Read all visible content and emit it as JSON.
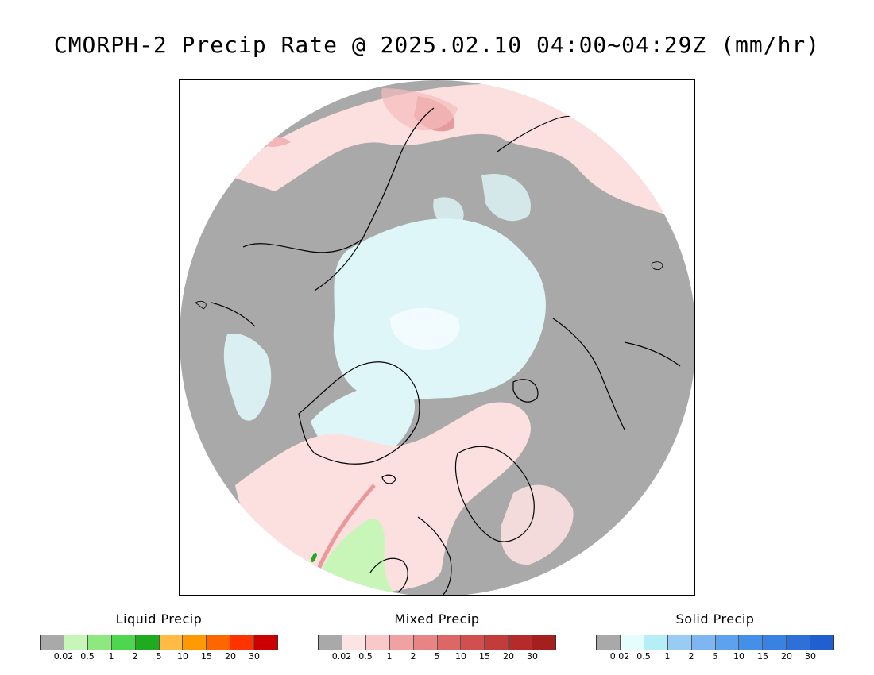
{
  "title": "CMORPH-2 Precip Rate @ 2025.02.10 04:00~04:29Z (mm/hr)",
  "map": {
    "projection": "north polar stereographic",
    "region": "Northern Hemisphere high latitudes (Arctic)",
    "colors": {
      "no_precip": "#a9a9a9",
      "ocean_mixed_light": "#fce0e0",
      "snow_light": "#dff6f9",
      "snow_very_light": "#f2fbfd",
      "liquid_light": "#c8f5b8",
      "coast": "#000000"
    }
  },
  "legends": [
    {
      "title": "Liquid Precip",
      "colors": [
        "#a9a9a9",
        "#c8f5b8",
        "#8fe87f",
        "#4fd64f",
        "#1faa1f",
        "#ffbb44",
        "#ff9900",
        "#ff6600",
        "#ff3300",
        "#cc0000"
      ],
      "ticks": [
        "0.02",
        "0.5",
        "1",
        "2",
        "5",
        "10",
        "15",
        "20",
        "30"
      ]
    },
    {
      "title": "Mixed Precip",
      "colors": [
        "#a9a9a9",
        "#fde4e4",
        "#f9c8c8",
        "#f0a2a2",
        "#e88484",
        "#dd6666",
        "#d14f4f",
        "#c33c3c",
        "#b52b2b",
        "#a51f1f"
      ],
      "ticks": [
        "0.02",
        "0.5",
        "1",
        "2",
        "5",
        "10",
        "15",
        "20",
        "30"
      ]
    },
    {
      "title": "Solid Precip",
      "colors": [
        "#a9a9a9",
        "#e6fdfe",
        "#b6eef8",
        "#99ccf5",
        "#7db6f2",
        "#5da2ee",
        "#4490e8",
        "#3a82e2",
        "#2d70da",
        "#1f5fd0"
      ],
      "ticks": [
        "0.02",
        "0.5",
        "1",
        "2",
        "5",
        "10",
        "15",
        "20",
        "30"
      ]
    }
  ]
}
